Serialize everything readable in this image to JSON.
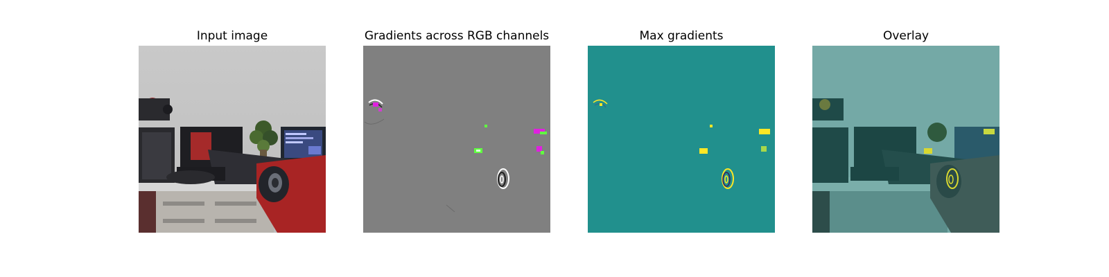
{
  "panels": [
    {
      "title": "Input image"
    },
    {
      "title": "Gradients across RGB channels"
    },
    {
      "title": "Max gradients"
    },
    {
      "title": "Overlay"
    }
  ],
  "colors": {
    "background": "#ffffff",
    "gradients_gray": "#808080",
    "max_gradients_teal": "#21908d",
    "highlight_yellow": "#fde725",
    "highlight_magenta": "#e020e0",
    "highlight_green": "#60ff40"
  }
}
